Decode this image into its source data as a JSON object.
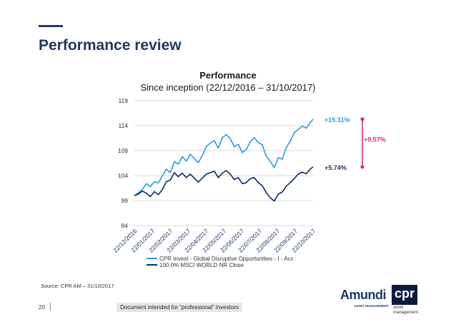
{
  "page": {
    "title": "Performance review",
    "source": "Source: CPR AM – 31/10/2017",
    "page_number": "20",
    "disclaimer": "Document intended for “professional” investors",
    "colors": {
      "accent": "#1f3864",
      "title": "#1f3864"
    }
  },
  "logos": {
    "amundi": {
      "name": "Amundi",
      "tagline": "ASSET MANAGEMENT"
    },
    "cpr": {
      "name": "cpr",
      "line1": "asset",
      "line2": "management"
    }
  },
  "chart_data": {
    "type": "line",
    "title": "Performance",
    "subtitle": "Since inception (22/12/2016 – 31/10/2017)",
    "ylim": [
      94,
      119
    ],
    "yticks": [
      94,
      99,
      104,
      109,
      114,
      119
    ],
    "xlim": [
      "2016-12-22",
      "2017-10-31"
    ],
    "xtick_labels": [
      "22/12/2016",
      "22/01/2017",
      "22/02/2017",
      "22/03/2017",
      "22/04/2017",
      "22/05/2017",
      "22/06/2017",
      "22/07/2017",
      "22/08/2017",
      "22/09/2017",
      "22/10/2017"
    ],
    "grid": "horizontal",
    "legend_position": "bottom",
    "series": [
      {
        "name": "CPR Invest - Global Disruptive Opportunities - I - Acc",
        "color": "#2e9bd6",
        "end_label": "+15.31%",
        "end_label_color": "#2e9bd6",
        "points": [
          [
            "2016-12-22",
            100.0
          ],
          [
            "2016-12-29",
            100.6
          ],
          [
            "2017-01-05",
            101.2
          ],
          [
            "2017-01-12",
            102.4
          ],
          [
            "2017-01-19",
            101.8
          ],
          [
            "2017-01-26",
            102.8
          ],
          [
            "2017-02-02",
            102.5
          ],
          [
            "2017-02-09",
            104.0
          ],
          [
            "2017-02-16",
            105.3
          ],
          [
            "2017-02-23",
            104.6
          ],
          [
            "2017-03-02",
            106.8
          ],
          [
            "2017-03-09",
            106.3
          ],
          [
            "2017-03-16",
            107.8
          ],
          [
            "2017-03-23",
            106.9
          ],
          [
            "2017-03-30",
            108.3
          ],
          [
            "2017-04-06",
            107.4
          ],
          [
            "2017-04-13",
            106.6
          ],
          [
            "2017-04-20",
            108.0
          ],
          [
            "2017-04-27",
            109.8
          ],
          [
            "2017-05-04",
            110.5
          ],
          [
            "2017-05-11",
            111.0
          ],
          [
            "2017-05-18",
            109.5
          ],
          [
            "2017-05-25",
            111.6
          ],
          [
            "2017-06-01",
            112.2
          ],
          [
            "2017-06-08",
            111.4
          ],
          [
            "2017-06-15",
            109.8
          ],
          [
            "2017-06-22",
            110.3
          ],
          [
            "2017-06-29",
            108.6
          ],
          [
            "2017-07-06",
            109.2
          ],
          [
            "2017-07-13",
            110.8
          ],
          [
            "2017-07-20",
            111.6
          ],
          [
            "2017-07-27",
            110.6
          ],
          [
            "2017-08-03",
            110.2
          ],
          [
            "2017-08-10",
            107.9
          ],
          [
            "2017-08-17",
            106.9
          ],
          [
            "2017-08-24",
            105.6
          ],
          [
            "2017-08-31",
            107.6
          ],
          [
            "2017-09-07",
            107.3
          ],
          [
            "2017-09-14",
            109.6
          ],
          [
            "2017-09-21",
            110.9
          ],
          [
            "2017-09-28",
            112.6
          ],
          [
            "2017-10-05",
            113.2
          ],
          [
            "2017-10-12",
            113.9
          ],
          [
            "2017-10-19",
            113.5
          ],
          [
            "2017-10-26",
            114.6
          ],
          [
            "2017-10-31",
            115.31
          ]
        ]
      },
      {
        "name": "100.0% MSCI WORLD NR Close",
        "color": "#0d2c5e",
        "end_label": "+5.74%",
        "end_label_color": "#1f3864",
        "points": [
          [
            "2016-12-22",
            100.0
          ],
          [
            "2016-12-29",
            100.3
          ],
          [
            "2017-01-05",
            100.9
          ],
          [
            "2017-01-12",
            100.5
          ],
          [
            "2017-01-19",
            99.8
          ],
          [
            "2017-01-26",
            100.8
          ],
          [
            "2017-02-02",
            100.2
          ],
          [
            "2017-02-09",
            101.2
          ],
          [
            "2017-02-16",
            102.8
          ],
          [
            "2017-02-23",
            103.1
          ],
          [
            "2017-03-02",
            104.6
          ],
          [
            "2017-03-09",
            103.8
          ],
          [
            "2017-03-16",
            104.5
          ],
          [
            "2017-03-23",
            103.6
          ],
          [
            "2017-03-30",
            104.3
          ],
          [
            "2017-04-06",
            103.5
          ],
          [
            "2017-04-13",
            102.7
          ],
          [
            "2017-04-20",
            103.5
          ],
          [
            "2017-04-27",
            104.3
          ],
          [
            "2017-05-04",
            104.6
          ],
          [
            "2017-05-11",
            104.9
          ],
          [
            "2017-05-18",
            103.6
          ],
          [
            "2017-05-25",
            104.5
          ],
          [
            "2017-06-01",
            105.0
          ],
          [
            "2017-06-08",
            104.3
          ],
          [
            "2017-06-15",
            103.2
          ],
          [
            "2017-06-22",
            103.6
          ],
          [
            "2017-06-29",
            102.4
          ],
          [
            "2017-07-06",
            102.6
          ],
          [
            "2017-07-13",
            103.4
          ],
          [
            "2017-07-20",
            103.6
          ],
          [
            "2017-07-27",
            102.6
          ],
          [
            "2017-08-03",
            102.0
          ],
          [
            "2017-08-10",
            100.6
          ],
          [
            "2017-08-17",
            99.6
          ],
          [
            "2017-08-24",
            98.9
          ],
          [
            "2017-08-31",
            100.3
          ],
          [
            "2017-09-07",
            100.7
          ],
          [
            "2017-09-14",
            101.9
          ],
          [
            "2017-09-21",
            102.6
          ],
          [
            "2017-09-28",
            103.4
          ],
          [
            "2017-10-05",
            104.3
          ],
          [
            "2017-10-12",
            104.7
          ],
          [
            "2017-10-19",
            104.4
          ],
          [
            "2017-10-26",
            105.3
          ],
          [
            "2017-10-31",
            105.74
          ]
        ]
      }
    ],
    "difference_annotation": {
      "label": "+9.57%",
      "color": "#d6336c"
    }
  }
}
